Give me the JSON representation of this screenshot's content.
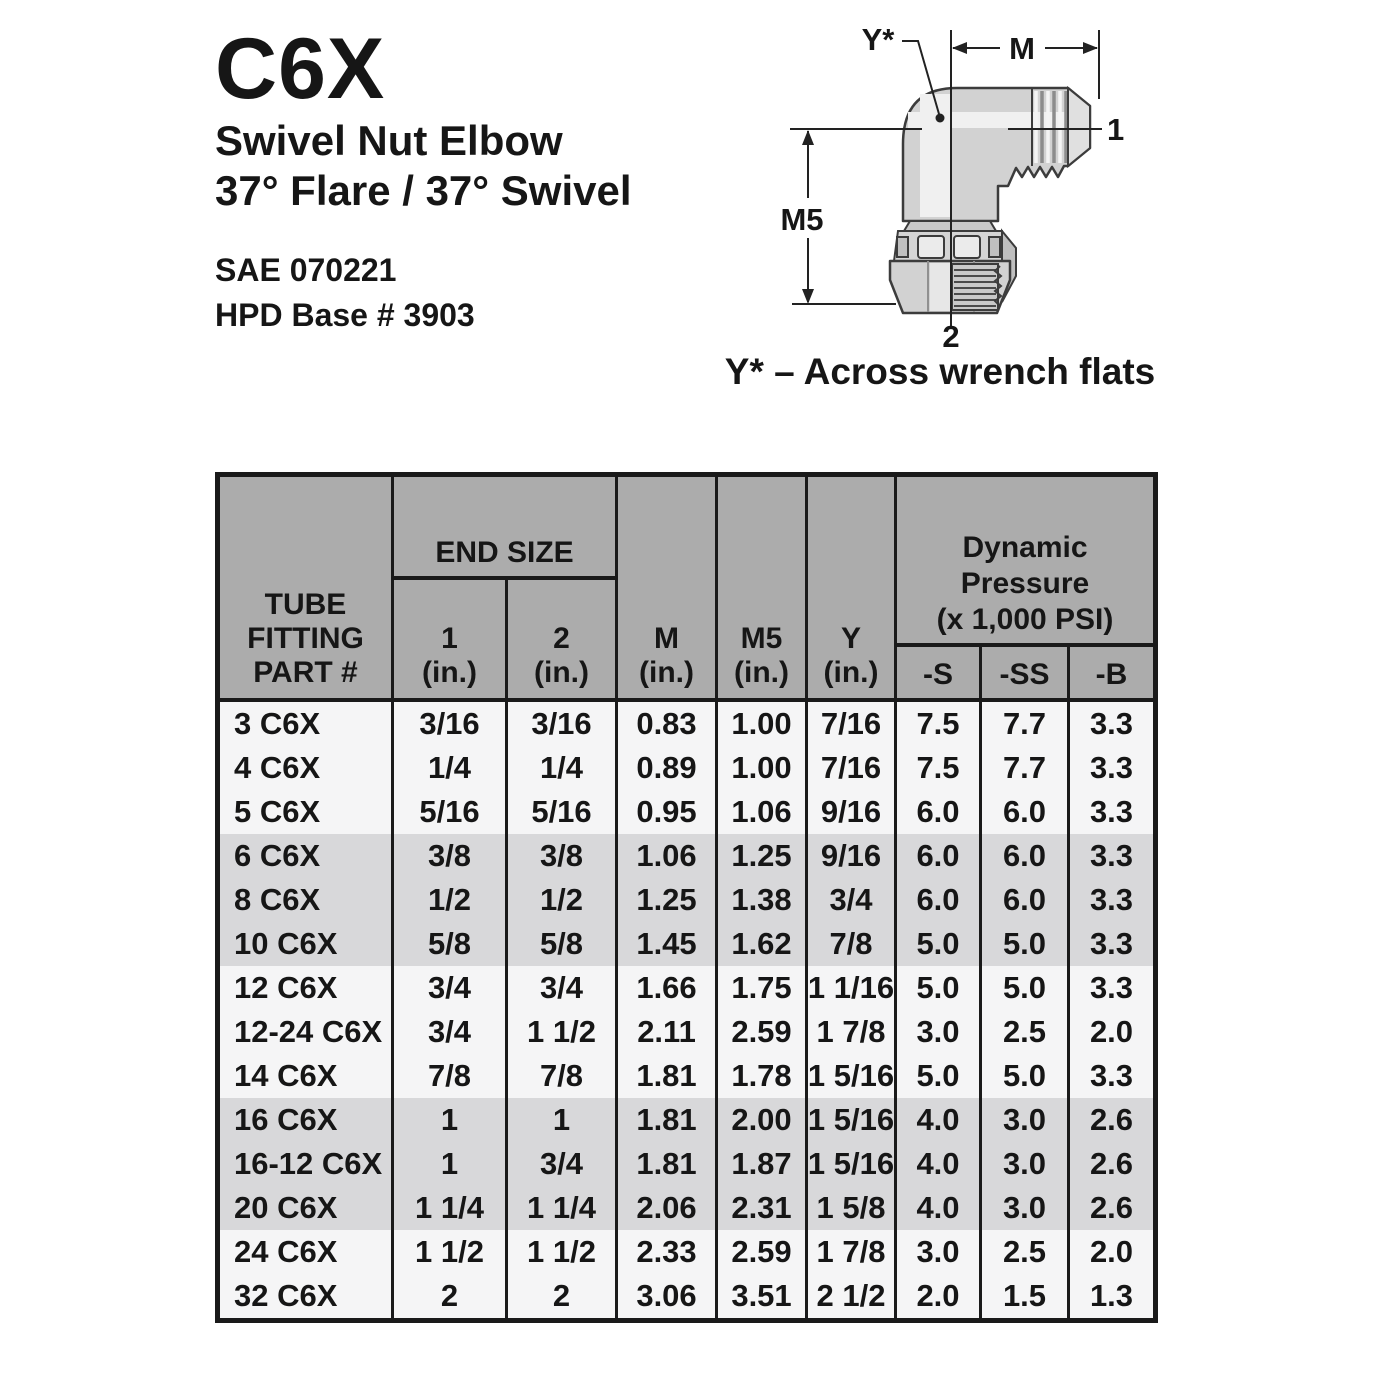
{
  "document": {
    "product_code": "C6X",
    "product_name": "Swivel Nut Elbow",
    "product_angle_spec": "37° Flare / 37° Swivel",
    "sae_number": "SAE 070221",
    "hpd_base": "HPD Base # 3903"
  },
  "diagram": {
    "labels": {
      "y_flats": "Y*",
      "m_dim": "M",
      "m5_dim": "M5",
      "end_1": "1",
      "end_2": "2"
    },
    "caption": "Y* – Across wrench flats"
  },
  "table": {
    "header": {
      "part_lines": [
        "TUBE",
        "FITTING",
        "PART #"
      ],
      "end_size_label": "END SIZE",
      "end1_label": "1",
      "end2_label": "2",
      "m_label": "M",
      "m5_label": "M5",
      "y_label": "Y",
      "unit_label": "(in.)",
      "dynamic_pressure_lines": [
        "Dynamic",
        "Pressure",
        "(x 1,000 PSI)"
      ],
      "s_label": "-S",
      "ss_label": "-SS",
      "b_label": "-B"
    },
    "row_keys": [
      "part",
      "end1",
      "end2",
      "m",
      "m5",
      "y",
      "s",
      "ss",
      "b"
    ],
    "rows": [
      {
        "part": "3 C6X",
        "end1": "3/16",
        "end2": "3/16",
        "m": "0.83",
        "m5": "1.00",
        "y": "7/16",
        "s": "7.5",
        "ss": "7.7",
        "b": "3.3",
        "band": "white"
      },
      {
        "part": "4 C6X",
        "end1": "1/4",
        "end2": "1/4",
        "m": "0.89",
        "m5": "1.00",
        "y": "7/16",
        "s": "7.5",
        "ss": "7.7",
        "b": "3.3",
        "band": "white"
      },
      {
        "part": "5 C6X",
        "end1": "5/16",
        "end2": "5/16",
        "m": "0.95",
        "m5": "1.06",
        "y": "9/16",
        "s": "6.0",
        "ss": "6.0",
        "b": "3.3",
        "band": "white"
      },
      {
        "part": "6 C6X",
        "end1": "3/8",
        "end2": "3/8",
        "m": "1.06",
        "m5": "1.25",
        "y": "9/16",
        "s": "6.0",
        "ss": "6.0",
        "b": "3.3",
        "band": "gray"
      },
      {
        "part": "8 C6X",
        "end1": "1/2",
        "end2": "1/2",
        "m": "1.25",
        "m5": "1.38",
        "y": "3/4",
        "s": "6.0",
        "ss": "6.0",
        "b": "3.3",
        "band": "gray"
      },
      {
        "part": "10 C6X",
        "end1": "5/8",
        "end2": "5/8",
        "m": "1.45",
        "m5": "1.62",
        "y": "7/8",
        "s": "5.0",
        "ss": "5.0",
        "b": "3.3",
        "band": "gray"
      },
      {
        "part": "12 C6X",
        "end1": "3/4",
        "end2": "3/4",
        "m": "1.66",
        "m5": "1.75",
        "y": "1 1/16",
        "s": "5.0",
        "ss": "5.0",
        "b": "3.3",
        "band": "white"
      },
      {
        "part": "12-24 C6X",
        "end1": "3/4",
        "end2": "1 1/2",
        "m": "2.11",
        "m5": "2.59",
        "y": "1 7/8",
        "s": "3.0",
        "ss": "2.5",
        "b": "2.0",
        "band": "white"
      },
      {
        "part": "14 C6X",
        "end1": "7/8",
        "end2": "7/8",
        "m": "1.81",
        "m5": "1.78",
        "y": "1 5/16",
        "s": "5.0",
        "ss": "5.0",
        "b": "3.3",
        "band": "white"
      },
      {
        "part": "16 C6X",
        "end1": "1",
        "end2": "1",
        "m": "1.81",
        "m5": "2.00",
        "y": "1 5/16",
        "s": "4.0",
        "ss": "3.0",
        "b": "2.6",
        "band": "gray"
      },
      {
        "part": "16-12 C6X",
        "end1": "1",
        "end2": "3/4",
        "m": "1.81",
        "m5": "1.87",
        "y": "1 5/16",
        "s": "4.0",
        "ss": "3.0",
        "b": "2.6",
        "band": "gray"
      },
      {
        "part": "20 C6X",
        "end1": "1 1/4",
        "end2": "1 1/4",
        "m": "2.06",
        "m5": "2.31",
        "y": "1 5/8",
        "s": "4.0",
        "ss": "3.0",
        "b": "2.6",
        "band": "gray"
      },
      {
        "part": "24 C6X",
        "end1": "1 1/2",
        "end2": "1 1/2",
        "m": "2.33",
        "m5": "2.59",
        "y": "1 7/8",
        "s": "3.0",
        "ss": "2.5",
        "b": "2.0",
        "band": "white"
      },
      {
        "part": "32 C6X",
        "end1": "2",
        "end2": "2",
        "m": "3.06",
        "m5": "3.51",
        "y": "2 1/2",
        "s": "2.0",
        "ss": "1.5",
        "b": "1.3",
        "band": "white"
      }
    ]
  },
  "colors": {
    "header_gray": "#ACACAC",
    "row_gray": "#D8D8DA",
    "row_white": "#F5F5F6",
    "border": "#1A1A1A",
    "ink": "#161616",
    "drawing_body": "#D2D2D2",
    "drawing_outline": "#3C3C3C"
  }
}
